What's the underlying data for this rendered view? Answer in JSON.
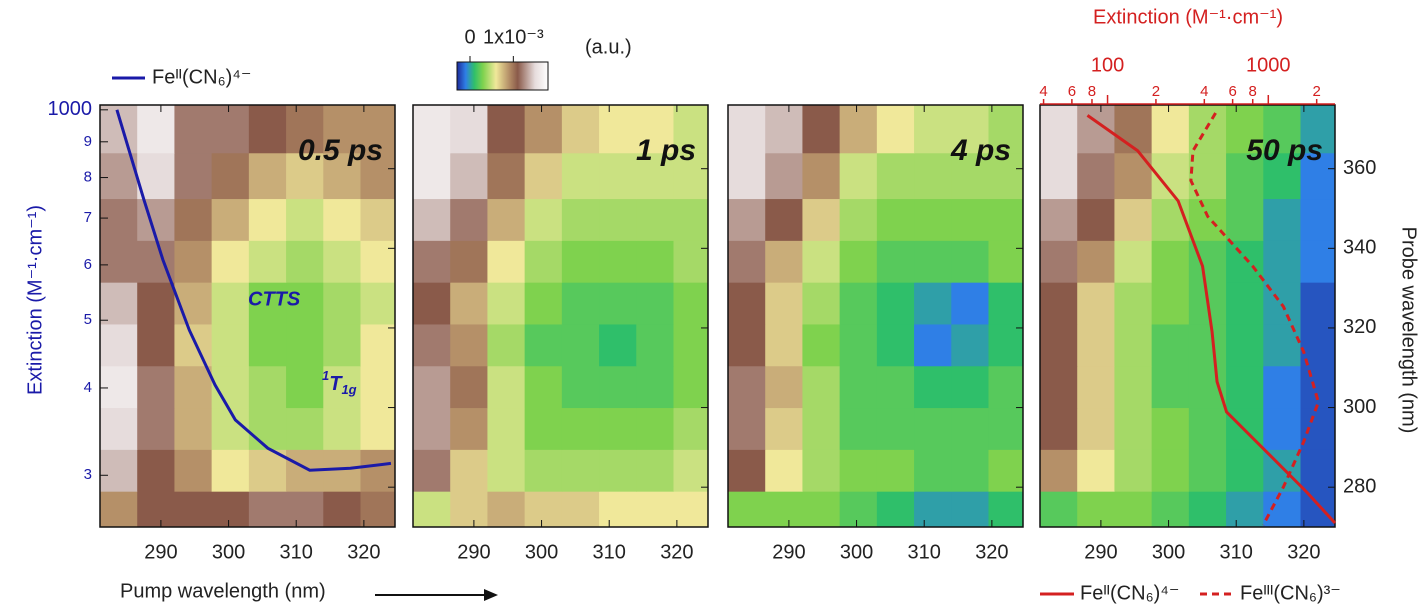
{
  "chart_data": {
    "type": "heatmap",
    "xlabel": "Pump wavelength (nm)",
    "ylabel": "Probe wavelength (nm)",
    "xlim": [
      281,
      324.6
    ],
    "xticks": [
      290,
      300,
      310,
      320
    ],
    "ylim": [
      270,
      376
    ],
    "yticks": [
      280,
      300,
      320,
      340,
      360
    ],
    "x": [
      284,
      289,
      295,
      300,
      306,
      311,
      317,
      322
    ],
    "y": [
      274,
      284,
      295,
      305,
      316,
      326,
      337,
      347,
      358,
      370
    ],
    "colorbar": {
      "label": "(a.u.)",
      "lim": [
        -0.0003,
        0.0018
      ],
      "ticks": [
        0,
        {
          "value": 0.001,
          "label": "1x10⁻³"
        }
      ],
      "colormap": [
        {
          "value": -0.0003,
          "color": "#1c2a9a"
        },
        {
          "value": -0.0001,
          "color": "#2f7fe6"
        },
        {
          "value": 0.0001,
          "color": "#2fbf6a"
        },
        {
          "value": 0.0003,
          "color": "#7fd24e"
        },
        {
          "value": 0.0006,
          "color": "#f0e89a"
        },
        {
          "value": 0.0009,
          "color": "#b59068"
        },
        {
          "value": 0.0011,
          "color": "#8a5a4a"
        },
        {
          "value": 0.0015,
          "color": "#e6dcdc"
        },
        {
          "value": 0.0018,
          "color": "#ffffff"
        }
      ]
    },
    "panels": [
      {
        "title": "0.5 ps",
        "values": [
          [
            0.0009,
            0.0011,
            0.0011,
            0.0011,
            0.0012,
            0.0012,
            0.0011,
            0.001
          ],
          [
            0.0014,
            0.0011,
            0.0009,
            0.0006,
            0.0007,
            0.0008,
            0.0008,
            0.0009
          ],
          [
            0.0015,
            0.0012,
            0.0008,
            0.0005,
            0.0004,
            0.0004,
            0.0005,
            0.0006
          ],
          [
            0.0016,
            0.0012,
            0.0008,
            0.0005,
            0.0004,
            0.0003,
            0.0005,
            0.0006
          ],
          [
            0.0015,
            0.0011,
            0.0007,
            0.0005,
            0.0003,
            0.0003,
            0.0004,
            0.0006
          ],
          [
            0.0014,
            0.0011,
            0.0008,
            0.0005,
            0.0003,
            0.0003,
            0.0004,
            0.0005
          ],
          [
            0.0012,
            0.0012,
            0.0009,
            0.0006,
            0.0005,
            0.0004,
            0.0005,
            0.0006
          ],
          [
            0.0012,
            0.0013,
            0.001,
            0.0008,
            0.0006,
            0.0005,
            0.0006,
            0.0007
          ],
          [
            0.0013,
            0.0015,
            0.0012,
            0.001,
            0.0008,
            0.0007,
            0.0008,
            0.0009
          ],
          [
            0.0014,
            0.0016,
            0.0012,
            0.0012,
            0.0011,
            0.001,
            0.0009,
            0.0009
          ]
        ]
      },
      {
        "title": "1 ps",
        "values": [
          [
            0.0005,
            0.0007,
            0.0008,
            0.0007,
            0.0007,
            0.0006,
            0.0006,
            0.0006
          ],
          [
            0.0012,
            0.0007,
            0.0005,
            0.0004,
            0.0004,
            0.0004,
            0.0004,
            0.0005
          ],
          [
            0.0013,
            0.0009,
            0.0005,
            0.0003,
            0.0003,
            0.0003,
            0.0003,
            0.0004
          ],
          [
            0.0013,
            0.001,
            0.0005,
            0.0003,
            0.0002,
            0.0002,
            0.0002,
            0.0003
          ],
          [
            0.0012,
            0.0009,
            0.0004,
            0.0002,
            0.0002,
            0.0001,
            0.0002,
            0.0003
          ],
          [
            0.0011,
            0.0008,
            0.0005,
            0.0003,
            0.0002,
            0.0002,
            0.0002,
            0.0003
          ],
          [
            0.0012,
            0.001,
            0.0006,
            0.0004,
            0.0003,
            0.0003,
            0.0003,
            0.0004
          ],
          [
            0.0014,
            0.0012,
            0.0008,
            0.0005,
            0.0004,
            0.0004,
            0.0004,
            0.0004
          ],
          [
            0.0016,
            0.0014,
            0.001,
            0.0007,
            0.0005,
            0.0005,
            0.0005,
            0.0005
          ],
          [
            0.0016,
            0.0015,
            0.0011,
            0.0009,
            0.0007,
            0.0006,
            0.0006,
            0.0005
          ]
        ]
      },
      {
        "title": "4 ps",
        "values": [
          [
            0.0003,
            0.0003,
            0.0003,
            0.0002,
            0.0001,
            0.0,
            0.0,
            0.0001
          ],
          [
            0.0011,
            0.0006,
            0.0004,
            0.0003,
            0.0003,
            0.0002,
            0.0002,
            0.0003
          ],
          [
            0.0012,
            0.0007,
            0.0004,
            0.0002,
            0.0002,
            0.0002,
            0.0002,
            0.0002
          ],
          [
            0.0012,
            0.0008,
            0.0004,
            0.0002,
            0.0002,
            0.0001,
            0.0001,
            0.0002
          ],
          [
            0.0011,
            0.0007,
            0.0003,
            0.0002,
            0.0001,
            -0.0001,
            0.0,
            0.0001
          ],
          [
            0.0011,
            0.0007,
            0.0004,
            0.0002,
            0.0001,
            0.0,
            -0.0001,
            0.0001
          ],
          [
            0.0012,
            0.0008,
            0.0005,
            0.0003,
            0.0002,
            0.0002,
            0.0002,
            0.0003
          ],
          [
            0.0013,
            0.0011,
            0.0007,
            0.0004,
            0.0003,
            0.0003,
            0.0003,
            0.0003
          ],
          [
            0.0015,
            0.0013,
            0.0009,
            0.0005,
            0.0004,
            0.0004,
            0.0004,
            0.0004
          ],
          [
            0.0015,
            0.0014,
            0.0011,
            0.0008,
            0.0006,
            0.0005,
            0.0005,
            0.0004
          ]
        ]
      },
      {
        "title": "50 ps",
        "values": [
          [
            0.0002,
            0.0003,
            0.0003,
            0.0002,
            0.0001,
            0.0,
            -0.0001,
            -0.0002
          ],
          [
            0.0009,
            0.0006,
            0.0004,
            0.0003,
            0.0002,
            0.0001,
            0.0,
            -0.0002
          ],
          [
            0.0011,
            0.0007,
            0.0004,
            0.0003,
            0.0002,
            0.0001,
            -0.0001,
            -0.0002
          ],
          [
            0.0011,
            0.0007,
            0.0004,
            0.0002,
            0.0002,
            0.0001,
            -0.0001,
            -0.0002
          ],
          [
            0.0011,
            0.0007,
            0.0004,
            0.0002,
            0.0002,
            0.0001,
            0.0,
            -0.0002
          ],
          [
            0.0011,
            0.0007,
            0.0004,
            0.0003,
            0.0002,
            0.0001,
            0.0,
            -0.0002
          ],
          [
            0.0012,
            0.0009,
            0.0005,
            0.0003,
            0.0002,
            0.0001,
            0.0,
            -0.0001
          ],
          [
            0.0013,
            0.0011,
            0.0007,
            0.0004,
            0.0003,
            0.0002,
            0.0,
            -0.0001
          ],
          [
            0.0015,
            0.0012,
            0.0009,
            0.0005,
            0.0004,
            0.0002,
            0.0001,
            -0.0001
          ],
          [
            0.0015,
            0.0013,
            0.001,
            0.0006,
            0.0004,
            0.0003,
            0.0002,
            0.0
          ]
        ]
      }
    ],
    "extinction_left": {
      "type": "line",
      "ylabel": "Extinction (M⁻¹·cm⁻¹)",
      "log": true,
      "ylim": [
        253,
        1016
      ],
      "yticks": [
        1000,
        {
          "value": 900,
          "label": "9"
        },
        {
          "value": 800,
          "label": "8"
        },
        {
          "value": 700,
          "label": "7"
        },
        {
          "value": 600,
          "label": "6"
        },
        {
          "value": 500,
          "label": "5"
        },
        {
          "value": 400,
          "label": "4"
        },
        {
          "value": 300,
          "label": "3"
        }
      ],
      "series": [
        {
          "name": "Feᴵᴵ(CN₆)⁴⁻",
          "color": "#1a1aa8",
          "x": [
            283.5,
            287.5,
            290.3,
            294.2,
            298,
            301,
            305.8,
            312,
            318,
            324
          ],
          "values": [
            1000,
            743,
            610,
            484,
            404,
            360,
            328,
            305,
            307,
            312
          ]
        }
      ],
      "annotations": [
        {
          "text": "CTTS"
        },
        {
          "sup": "1",
          "text": "T",
          "sub": "1g"
        }
      ]
    },
    "extinction_top": {
      "type": "line",
      "xlabel": "Extinction (M⁻¹·cm⁻¹)",
      "log": true,
      "xlim": [
        38,
        2600
      ],
      "xticks": [
        {
          "value": 40,
          "label": "4"
        },
        {
          "value": 60,
          "label": "6"
        },
        {
          "value": 80,
          "label": "8"
        },
        100,
        {
          "value": 200,
          "label": "2"
        },
        {
          "value": 400,
          "label": "4"
        },
        {
          "value": 600,
          "label": "6"
        },
        {
          "value": 800,
          "label": "8"
        },
        1000,
        {
          "value": 2000,
          "label": "2"
        }
      ],
      "series": [
        {
          "name": "Feᴵᴵ(CN₆)⁴⁻",
          "color": "#d42020",
          "dashed": false,
          "values": [
            75,
            154,
            275,
            390,
            447,
            480,
            550,
            980,
            1740,
            2600
          ],
          "y": [
            373.4,
            364.5,
            351.9,
            335.5,
            319,
            306.5,
            298.9,
            288.8,
            278.7,
            271
          ]
        },
        {
          "name": "Feᴵᴵᴵ(CN₆)³⁻",
          "color": "#d42020",
          "dashed": true,
          "values": [
            470,
            340,
            330,
            420,
            800,
            1240,
            1660,
            2050,
            1660,
            1240,
            930
          ],
          "y": [
            374,
            364.5,
            357,
            348,
            335.5,
            325.4,
            314,
            301.4,
            291.4,
            280,
            270.5
          ]
        }
      ]
    }
  }
}
